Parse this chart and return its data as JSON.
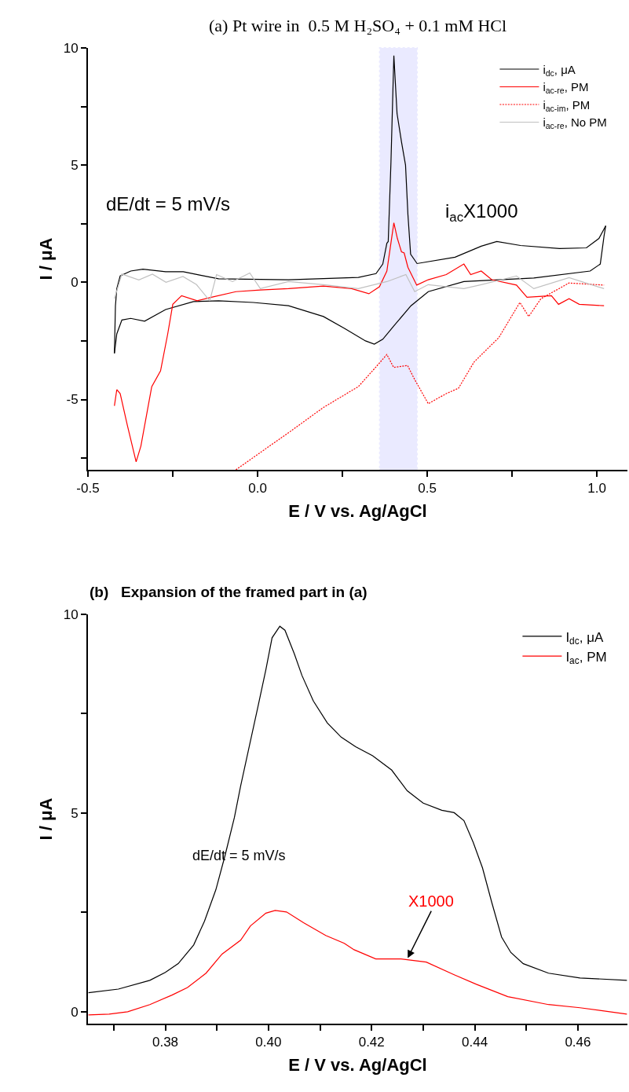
{
  "chart_data": [
    {
      "type": "line",
      "title": "(a) Pt wire in  0.5 M H₂SO₄ + 0.1 mM HCl",
      "xlabel": "E / V vs. Ag/AgCl",
      "ylabel": "I / μA",
      "xlim": [
        -0.5,
        1.09
      ],
      "ylim": [
        -8,
        10
      ],
      "xticks": [
        {
          "value": -0.5,
          "label": "-0.5"
        },
        {
          "value": -0.25,
          "label": null
        },
        {
          "value": 0,
          "label": "0.0"
        },
        {
          "value": 0.25,
          "label": null
        },
        {
          "value": 0.5,
          "label": "0.5"
        },
        {
          "value": 0.75,
          "label": null
        },
        {
          "value": 1.0,
          "label": "1.0"
        }
      ],
      "yticks": [
        {
          "value": -7.5,
          "label": null
        },
        -5,
        {
          "value": -2.5,
          "label": null
        },
        0,
        {
          "value": 2.5,
          "label": null
        },
        5,
        {
          "value": 7.5,
          "label": null
        },
        10
      ],
      "grid": false,
      "legend": "top right",
      "annotations": [
        "dE/dt = 5 mV/s",
        "i$_{ac}$X1000"
      ],
      "bands": [
        {
          "axis": "x",
          "from": 0.36,
          "to": 0.47,
          "color": "#0000ff"
        }
      ],
      "series": [
        {
          "name": "i$_{dc}$, μA",
          "color": "#000000",
          "line_style": "solid",
          "x": [
            -0.422,
            -0.419,
            -0.415,
            -0.405,
            -0.374,
            -0.338,
            -0.271,
            -0.219,
            -0.168,
            -0.115,
            0.091,
            0.297,
            0.349,
            0.369,
            0.381,
            0.385,
            0.393,
            0.4016,
            0.411,
            0.424,
            0.436,
            0.443,
            0.451,
            0.47,
            0.582,
            0.659,
            0.705,
            0.775,
            0.89,
            0.969,
            1.006,
            1.026
          ],
          "values": [
            -3.03,
            -1.0,
            -0.27,
            0.27,
            0.48,
            0.56,
            0.45,
            0.45,
            0.3,
            0.15,
            0.11,
            0.21,
            0.37,
            0.78,
            1.67,
            1.74,
            5.1,
            9.67,
            7.2,
            6.0,
            5.0,
            2.9,
            1.2,
            0.8,
            1.07,
            1.54,
            1.74,
            1.57,
            1.44,
            1.47,
            1.87,
            2.41
          ]
        },
        {
          "color": "#000000",
          "line_style": "solid",
          "x": [
            1.026,
            1.021,
            1.01,
            0.98,
            0.814,
            0.608,
            0.503,
            0.452,
            0.401,
            0.369,
            0.344,
            0.318,
            0.256,
            0.194,
            0.091,
            -0.013,
            -0.115,
            -0.189,
            -0.271,
            -0.333,
            -0.374,
            -0.4,
            -0.415,
            -0.422
          ],
          "values": [
            2.41,
            1.97,
            0.78,
            0.48,
            0.18,
            0.03,
            -0.4,
            -1.0,
            -1.87,
            -2.43,
            -2.64,
            -2.5,
            -1.97,
            -1.46,
            -1.0,
            -0.86,
            -0.79,
            -0.82,
            -1.16,
            -1.66,
            -1.54,
            -1.61,
            -2.2,
            -3.03
          ]
        },
        {
          "name": "i$_{ac-re}$, PM",
          "color": "#ff0000",
          "line_style": "solid",
          "x": [
            -0.422,
            -0.415,
            -0.405,
            -0.384,
            -0.358,
            -0.344,
            -0.312,
            -0.286,
            -0.265,
            -0.25,
            -0.224,
            -0.178,
            -0.136,
            -0.064,
            0.008,
            0.091,
            0.194,
            0.277,
            0.328,
            0.359,
            0.381,
            0.4016,
            0.412,
            0.424,
            0.432,
            0.443,
            0.469,
            0.503,
            0.556,
            0.608,
            0.628,
            0.659,
            0.69,
            0.763,
            0.794,
            0.866,
            0.887,
            0.918,
            0.948,
            1.021
          ],
          "values": [
            -5.27,
            -4.58,
            -4.75,
            -6.09,
            -7.66,
            -6.99,
            -4.45,
            -3.78,
            -2.21,
            -0.94,
            -0.57,
            -0.79,
            -0.64,
            -0.4,
            -0.33,
            -0.27,
            -0.16,
            -0.27,
            -0.49,
            -0.19,
            0.48,
            2.54,
            1.87,
            1.3,
            1.25,
            0.64,
            -0.12,
            0.11,
            0.33,
            0.78,
            0.33,
            0.48,
            0.11,
            -0.12,
            -0.64,
            -0.57,
            -0.94,
            -0.7,
            -0.94,
            -1.0
          ]
        },
        {
          "name": "i$_{ac-im}$, PM",
          "color": "#ff0000",
          "line_style": "dotted",
          "x": [
            -0.064,
            0.028,
            0.091,
            0.194,
            0.297,
            0.349,
            0.381,
            0.401,
            0.442,
            0.463,
            0.503,
            0.556,
            0.592,
            0.638,
            0.711,
            0.773,
            0.799,
            0.835,
            0.918,
            1.021
          ],
          "values": [
            -8.0,
            -7.06,
            -6.42,
            -5.34,
            -4.45,
            -3.61,
            -3.08,
            -3.63,
            -3.55,
            -4.15,
            -5.18,
            -4.75,
            -4.52,
            -3.4,
            -2.36,
            -0.86,
            -1.46,
            -0.7,
            -0.03,
            -0.12
          ]
        },
        {
          "name": "i$_{ac-re}$, No PM",
          "color": "#c0c0c0",
          "line_style": "solid",
          "x": [
            -0.422,
            -0.4,
            -0.35,
            -0.31,
            -0.27,
            -0.22,
            -0.18,
            -0.141,
            -0.121,
            -0.074,
            -0.023,
            0.008,
            0.091,
            0.194,
            0.297,
            0.381,
            0.437,
            0.463,
            0.503,
            0.608,
            0.659,
            0.763,
            0.814,
            0.918,
            1.021
          ],
          "values": [
            -0.7,
            0.35,
            0.1,
            0.35,
            0.0,
            0.25,
            -0.1,
            -0.79,
            0.33,
            0.03,
            0.4,
            -0.27,
            0.03,
            -0.1,
            -0.27,
            0.03,
            0.33,
            -0.4,
            -0.1,
            -0.27,
            -0.1,
            0.27,
            -0.27,
            0.2,
            -0.27
          ]
        }
      ]
    },
    {
      "type": "line",
      "title": "(b)   Expansion of the framed part in (a)",
      "xlabel": "E / V vs. Ag/AgCl",
      "ylabel": "I / μA",
      "xlim": [
        0.365,
        0.4696
      ],
      "ylim": [
        -0.3,
        10
      ],
      "xticks": [
        {
          "value": 0.37,
          "label": null
        },
        {
          "value": 0.38,
          "label": "0.38"
        },
        {
          "value": 0.39,
          "label": null
        },
        {
          "value": 0.4,
          "label": "0.40"
        },
        {
          "value": 0.41,
          "label": null
        },
        {
          "value": 0.42,
          "label": "0.42"
        },
        {
          "value": 0.43,
          "label": null
        },
        {
          "value": 0.44,
          "label": "0.44"
        },
        {
          "value": 0.45,
          "label": null
        },
        {
          "value": 0.46,
          "label": "0.46"
        }
      ],
      "yticks": [
        0,
        {
          "value": 2.5,
          "label": null
        },
        5,
        {
          "value": 7.5,
          "label": null
        },
        10
      ],
      "grid": false,
      "legend": "top right",
      "annotations": [
        "dE/dt = 5 mV/s",
        {
          "text": "X1000",
          "x": 0.427,
          "y": 1.35
        }
      ],
      "series": [
        {
          "name": "I$_{dc}$, μA",
          "color": "#000000",
          "line_style": "solid",
          "x": [
            0.3651,
            0.3709,
            0.377,
            0.38,
            0.3825,
            0.3855,
            0.3876,
            0.3898,
            0.3916,
            0.3934,
            0.3946,
            0.3962,
            0.398,
            0.3995,
            0.4007,
            0.4022,
            0.4032,
            0.405,
            0.4065,
            0.4087,
            0.4114,
            0.4141,
            0.4169,
            0.4202,
            0.4239,
            0.4269,
            0.43,
            0.4336,
            0.436,
            0.4379,
            0.4397,
            0.4415,
            0.4433,
            0.4452,
            0.447,
            0.4494,
            0.4543,
            0.4604,
            0.4695
          ],
          "values": [
            0.48,
            0.57,
            0.79,
            0.99,
            1.21,
            1.68,
            2.28,
            3.07,
            3.94,
            4.89,
            5.68,
            6.63,
            7.7,
            8.61,
            9.41,
            9.7,
            9.6,
            9.01,
            8.46,
            7.82,
            7.27,
            6.91,
            6.67,
            6.44,
            6.08,
            5.56,
            5.25,
            5.07,
            5.01,
            4.81,
            4.26,
            3.62,
            2.75,
            1.88,
            1.49,
            1.21,
            0.97,
            0.85,
            0.79
          ]
        },
        {
          "name": "I$_{ac}$, PM",
          "color": "#ff0000",
          "line_style": "solid",
          "x": [
            0.3651,
            0.3691,
            0.3727,
            0.377,
            0.3813,
            0.3843,
            0.3879,
            0.391,
            0.3946,
            0.3965,
            0.3995,
            0.4013,
            0.4035,
            0.4068,
            0.4111,
            0.4147,
            0.4166,
            0.4208,
            0.4257,
            0.4306,
            0.436,
            0.4403,
            0.4464,
            0.4543,
            0.4604,
            0.4695
          ],
          "values": [
            -0.08,
            -0.06,
            0.0,
            0.18,
            0.42,
            0.61,
            0.97,
            1.45,
            1.8,
            2.16,
            2.48,
            2.55,
            2.51,
            2.24,
            1.92,
            1.72,
            1.56,
            1.33,
            1.33,
            1.25,
            0.93,
            0.69,
            0.38,
            0.18,
            0.1,
            -0.06
          ]
        }
      ]
    }
  ]
}
